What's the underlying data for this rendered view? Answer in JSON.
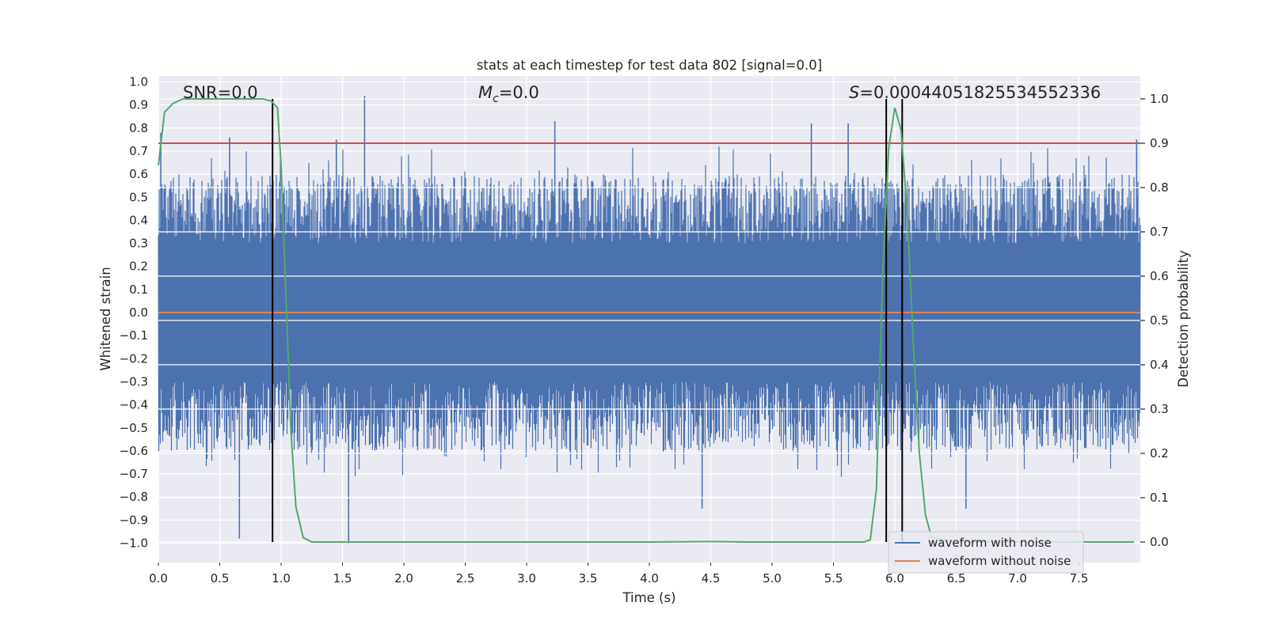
{
  "chart_data": {
    "type": "line",
    "title": "stats at each timestep for test data 802 [signal=0.0]",
    "xlabel": "Time (s)",
    "ylabel_left": "Whitened strain",
    "ylabel_right": "Detection probability",
    "xlim": [
      0.0,
      8.0
    ],
    "ylim_left": [
      -1.1,
      1.03
    ],
    "ylim_right": [
      -0.045,
      1.03
    ],
    "x_ticks": [
      "0.0",
      "0.5",
      "1.0",
      "1.5",
      "2.0",
      "2.5",
      "3.0",
      "3.5",
      "4.0",
      "4.5",
      "5.0",
      "5.5",
      "6.0",
      "6.5",
      "7.0",
      "7.5"
    ],
    "y_ticks_left": [
      "1.0",
      "0.9",
      "0.8",
      "0.7",
      "0.6",
      "0.5",
      "0.4",
      "0.3",
      "0.2",
      "0.1",
      "0.0",
      "−0.1",
      "−0.2",
      "−0.3",
      "−0.4",
      "−0.5",
      "−0.6",
      "−0.7",
      "−0.8",
      "−0.9",
      "−1.0"
    ],
    "y_ticks_right": [
      "1.0",
      "0.9",
      "0.8",
      "0.7",
      "0.6",
      "0.5",
      "0.4",
      "0.3",
      "0.2",
      "0.1",
      "0.0"
    ],
    "annotations": {
      "snr": "SNR=0.0",
      "mc_symbol": "M",
      "mc_sub": "c",
      "mc_value": "=0.0",
      "s_symbol": "S",
      "s_value": "=0.00044051825534552336"
    },
    "threshold_right": 0.9,
    "series": [
      {
        "name": "waveform with noise",
        "color": "#4c72b0",
        "axis": "left",
        "description": "dense whitened noise, roughly within -0.6..0.6 with spikes to ~±0.95",
        "peak_spikes": [
          {
            "x": 0.02,
            "y": 0.78
          },
          {
            "x": 0.58,
            "y": 0.76
          },
          {
            "x": 0.66,
            "y": -0.98
          },
          {
            "x": 1.45,
            "y": 0.75
          },
          {
            "x": 1.55,
            "y": -1.0
          },
          {
            "x": 1.68,
            "y": 0.94
          },
          {
            "x": 3.23,
            "y": 0.83
          },
          {
            "x": 4.43,
            "y": -0.85
          },
          {
            "x": 5.32,
            "y": 0.82
          },
          {
            "x": 5.62,
            "y": 0.82
          },
          {
            "x": 6.58,
            "y": -0.85
          },
          {
            "x": 7.97,
            "y": 0.75
          }
        ]
      },
      {
        "name": "waveform without noise",
        "color": "#dd8452",
        "axis": "left",
        "x": [
          0.0,
          8.0
        ],
        "y": [
          0.0,
          0.0
        ]
      },
      {
        "name": "detection probability",
        "color": "#55a868",
        "axis": "right",
        "x": [
          0.0,
          0.05,
          0.12,
          0.2,
          0.3,
          0.5,
          0.7,
          0.85,
          0.92,
          0.97,
          1.0,
          1.04,
          1.08,
          1.12,
          1.18,
          1.25,
          1.5,
          2.0,
          3.0,
          4.0,
          4.5,
          4.8,
          5.0,
          5.5,
          5.75,
          5.8,
          5.85,
          5.9,
          5.95,
          6.0,
          6.05,
          6.1,
          6.15,
          6.2,
          6.25,
          6.3,
          6.5,
          7.0,
          7.5,
          7.95
        ],
        "y": [
          0.85,
          0.97,
          0.99,
          1.0,
          1.0,
          1.0,
          1.0,
          1.0,
          0.995,
          0.98,
          0.85,
          0.55,
          0.25,
          0.08,
          0.01,
          0.0,
          0.0,
          0.0,
          0.0,
          0.0,
          0.001,
          0.0,
          0.0,
          0.0,
          0.0,
          0.005,
          0.12,
          0.6,
          0.89,
          0.98,
          0.93,
          0.75,
          0.45,
          0.2,
          0.06,
          0.01,
          0.0,
          0.0,
          0.0,
          0.0
        ]
      }
    ],
    "vertical_lines": [
      0.93,
      5.93,
      6.06
    ],
    "vertical_line_span_right": [
      0.0,
      1.0
    ],
    "legend": {
      "position": "lower-right",
      "entries": [
        {
          "label": "waveform with noise",
          "color": "#4c72b0"
        },
        {
          "label": "waveform without noise",
          "color": "#dd8452"
        }
      ]
    },
    "colors": {
      "axes_bg": "#eaeaf2",
      "grid": "#ffffff",
      "threshold": "#c44e52",
      "vlines": "#000000"
    }
  }
}
